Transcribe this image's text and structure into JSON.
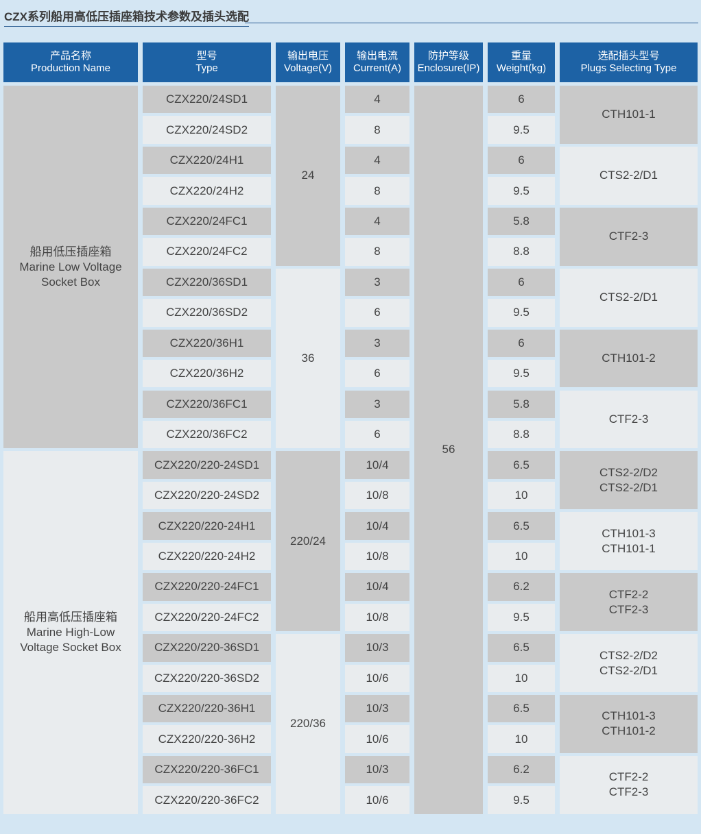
{
  "title": "CZX系列船用高低压插座箱技术参数及插头选配",
  "colors": {
    "background": "#d4e6f3",
    "header": "#1d62a5",
    "cell_gray": "#c9c9c9",
    "cell_light": "#e9ecee",
    "text": "#444444"
  },
  "headers": [
    {
      "zh": "产品名称",
      "en": "Production Name"
    },
    {
      "zh": "型号",
      "en": "Type"
    },
    {
      "zh": "输出电压",
      "en": "Voltage(V)"
    },
    {
      "zh": "输出电流",
      "en": "Current(A)"
    },
    {
      "zh": "防护等级",
      "en": "Enclosure(IP)"
    },
    {
      "zh": "重量",
      "en": "Weight(kg)"
    },
    {
      "zh": "选配插头型号",
      "en": "Plugs Selecting Type"
    }
  ],
  "product_groups": [
    {
      "zh": "船用低压插座箱",
      "en1": "Marine Low Voltage",
      "en2": "Socket Box",
      "rows": 12
    },
    {
      "zh": "船用高低压插座箱",
      "en1": "Marine High-Low",
      "en2": "Voltage Socket Box",
      "rows": 12
    }
  ],
  "voltage_groups": [
    {
      "value": "24",
      "rows": 6
    },
    {
      "value": "36",
      "rows": 6
    },
    {
      "value": "220/24",
      "rows": 6
    },
    {
      "value": "220/36",
      "rows": 6
    }
  ],
  "enclosure": "56",
  "plug_groups": [
    [
      "CTH101-1"
    ],
    [
      "CTS2-2/D1"
    ],
    [
      "CTF2-3"
    ],
    [
      "CTS2-2/D1"
    ],
    [
      "CTH101-2"
    ],
    [
      "CTF2-3"
    ],
    [
      "CTS2-2/D2",
      "CTS2-2/D1"
    ],
    [
      "CTH101-3",
      "CTH101-1"
    ],
    [
      "CTF2-2",
      "CTF2-3"
    ],
    [
      "CTS2-2/D2",
      "CTS2-2/D1"
    ],
    [
      "CTH101-3",
      "CTH101-2"
    ],
    [
      "CTF2-2",
      "CTF2-3"
    ]
  ],
  "rows": [
    {
      "type": "CZX220/24SD1",
      "current": "4",
      "weight": "6"
    },
    {
      "type": "CZX220/24SD2",
      "current": "8",
      "weight": "9.5"
    },
    {
      "type": "CZX220/24H1",
      "current": "4",
      "weight": "6"
    },
    {
      "type": "CZX220/24H2",
      "current": "8",
      "weight": "9.5"
    },
    {
      "type": "CZX220/24FC1",
      "current": "4",
      "weight": "5.8"
    },
    {
      "type": "CZX220/24FC2",
      "current": "8",
      "weight": "8.8"
    },
    {
      "type": "CZX220/36SD1",
      "current": "3",
      "weight": "6"
    },
    {
      "type": "CZX220/36SD2",
      "current": "6",
      "weight": "9.5"
    },
    {
      "type": "CZX220/36H1",
      "current": "3",
      "weight": "6"
    },
    {
      "type": "CZX220/36H2",
      "current": "6",
      "weight": "9.5"
    },
    {
      "type": "CZX220/36FC1",
      "current": "3",
      "weight": "5.8"
    },
    {
      "type": "CZX220/36FC2",
      "current": "6",
      "weight": "8.8"
    },
    {
      "type": "CZX220/220-24SD1",
      "current": "10/4",
      "weight": "6.5"
    },
    {
      "type": "CZX220/220-24SD2",
      "current": "10/8",
      "weight": "10"
    },
    {
      "type": "CZX220/220-24H1",
      "current": "10/4",
      "weight": "6.5"
    },
    {
      "type": "CZX220/220-24H2",
      "current": "10/8",
      "weight": "10"
    },
    {
      "type": "CZX220/220-24FC1",
      "current": "10/4",
      "weight": "6.2"
    },
    {
      "type": "CZX220/220-24FC2",
      "current": "10/8",
      "weight": "9.5"
    },
    {
      "type": "CZX220/220-36SD1",
      "current": "10/3",
      "weight": "6.5"
    },
    {
      "type": "CZX220/220-36SD2",
      "current": "10/6",
      "weight": "10"
    },
    {
      "type": "CZX220/220-36H1",
      "current": "10/3",
      "weight": "6.5"
    },
    {
      "type": "CZX220/220-36H2",
      "current": "10/6",
      "weight": "10"
    },
    {
      "type": "CZX220/220-36FC1",
      "current": "10/3",
      "weight": "6.2"
    },
    {
      "type": "CZX220/220-36FC2",
      "current": "10/6",
      "weight": "9.5"
    }
  ]
}
